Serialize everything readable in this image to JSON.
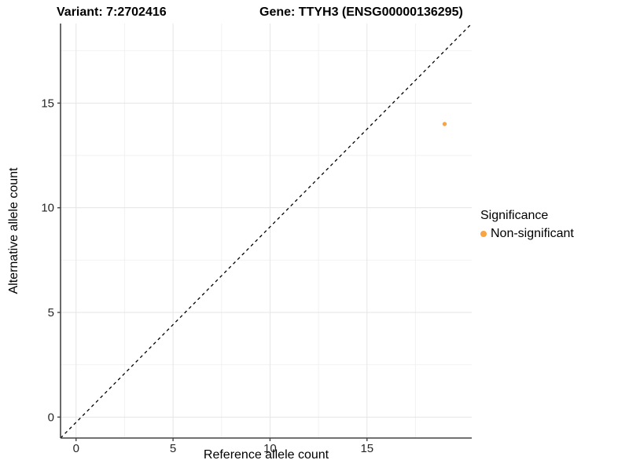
{
  "chart_data": {
    "type": "scatter",
    "title_variant": "Variant: 7:2702416",
    "title_gene": "Gene: TTYH3 (ENSG00000136295)",
    "xlabel": "Reference allele count",
    "ylabel": "Alternative allele count",
    "xlim": [
      -0.8,
      20.4
    ],
    "ylim": [
      -1.0,
      18.8
    ],
    "x_ticks": [
      0,
      5,
      10,
      15
    ],
    "y_ticks": [
      0,
      5,
      10,
      15
    ],
    "x_minor_gridlines": [
      2.5,
      7.5,
      12.5,
      17.5
    ],
    "y_minor_gridlines": [
      2.5,
      7.5,
      12.5,
      17.5
    ],
    "grid": true,
    "series": [
      {
        "name": "Non-significant",
        "color": "#F8A442",
        "points": [
          {
            "x": 19,
            "y": 14
          }
        ]
      }
    ],
    "reference_line": {
      "description": "dashed identity line y = x spanning the panel diagonally",
      "style": "dashed",
      "color": "#000000"
    },
    "legend_position": "right"
  },
  "legend": {
    "title": "Significance",
    "items": [
      {
        "label": "Non-significant",
        "color": "#F8A442"
      }
    ]
  },
  "colors": {
    "background": "#ffffff",
    "axis_line": "#444444",
    "major_grid": "#e5e5e5",
    "minor_grid": "#f2f2f2",
    "tick_label": "#262626",
    "point": "#F8A442"
  }
}
